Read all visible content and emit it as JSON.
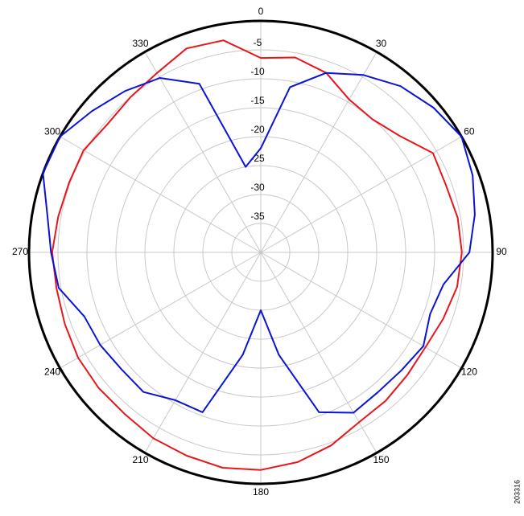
{
  "chart_data": {
    "type": "polar",
    "theta": [
      0,
      10,
      20,
      30,
      40,
      50,
      60,
      70,
      80,
      90,
      100,
      110,
      120,
      130,
      140,
      150,
      160,
      170,
      180,
      190,
      200,
      210,
      220,
      230,
      240,
      250,
      260,
      270,
      280,
      290,
      300,
      310,
      320,
      330,
      340,
      350
    ],
    "series": [
      {
        "color": "#e8161b",
        "values": [
          -6.4,
          -5.8,
          -7,
          -9.5,
          -10,
          -8.7,
          -5.7,
          -6,
          -5.5,
          -5.3,
          -5.6,
          -6.5,
          -7.2,
          -7,
          -6.5,
          -6.1,
          -4.5,
          -3.2,
          -2.4,
          -2.2,
          -2.6,
          -2.9,
          -3.5,
          -3.5,
          -3.6,
          -4,
          -4.2,
          -4,
          -4.5,
          -4.8,
          -4.7,
          -5.5,
          -5,
          -4.2,
          -2.5,
          -2.8
        ]
      },
      {
        "color": "#0a14d4",
        "values": [
          -22,
          -11,
          -7,
          -4.6,
          -2.5,
          -1.1,
          0,
          -1.1,
          -2.5,
          -4,
          -8,
          -8.9,
          -7.6,
          -8.3,
          -8.5,
          -8,
          -10.6,
          -22,
          -30,
          -22,
          -10.6,
          -10.5,
          -8.5,
          -8.6,
          -8,
          -7.6,
          -4.6,
          -3.8,
          -2.6,
          0,
          0,
          -2,
          -3.6,
          -5.2,
          -9,
          -25
        ]
      }
    ],
    "rlim": [
      -40,
      0
    ],
    "rticks": [
      -5,
      -10,
      -15,
      -20,
      -25,
      -30,
      -35
    ],
    "thetaticks": [
      0,
      30,
      60,
      90,
      120,
      150,
      180,
      210,
      240,
      270,
      300,
      330
    ],
    "direction": "clockwise",
    "zero": "top",
    "grid": true,
    "figure_id": "203316"
  }
}
